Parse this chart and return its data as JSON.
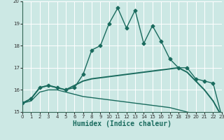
{
  "title": "",
  "xlabel": "Humidex (Indice chaleur)",
  "bg_color": "#cce8e4",
  "grid_color": "#ffffff",
  "line_color": "#1a6b5e",
  "xmin": 0,
  "xmax": 23,
  "ymin": 15,
  "ymax": 20,
  "x_ticks": [
    0,
    1,
    2,
    3,
    4,
    5,
    6,
    7,
    8,
    9,
    10,
    11,
    12,
    13,
    14,
    15,
    16,
    17,
    18,
    19,
    20,
    21,
    22,
    23
  ],
  "y_ticks": [
    15,
    16,
    17,
    18,
    19,
    20
  ],
  "curve1_x": [
    0,
    1,
    2,
    3,
    4,
    5,
    6,
    7,
    8,
    9,
    10,
    11,
    12,
    13,
    14,
    15,
    16,
    17,
    18,
    19,
    20,
    21,
    22,
    23
  ],
  "curve1_y": [
    15.4,
    15.6,
    16.1,
    16.2,
    16.1,
    16.0,
    16.1,
    16.7,
    17.8,
    18.0,
    19.0,
    19.7,
    18.8,
    19.6,
    18.1,
    18.9,
    18.2,
    17.4,
    17.0,
    17.0,
    16.5,
    16.4,
    16.3,
    14.8
  ],
  "curve2_x": [
    0,
    1,
    2,
    3,
    4,
    5,
    6,
    7,
    8,
    9,
    10,
    11,
    12,
    13,
    14,
    15,
    16,
    17,
    18,
    19,
    20,
    21,
    22,
    23
  ],
  "curve2_y": [
    15.4,
    15.6,
    16.1,
    16.2,
    16.1,
    16.0,
    16.2,
    16.4,
    16.5,
    16.55,
    16.6,
    16.65,
    16.7,
    16.75,
    16.8,
    16.85,
    16.9,
    16.95,
    17.0,
    16.8,
    16.4,
    16.0,
    15.5,
    14.8
  ],
  "curve3_x": [
    0,
    1,
    2,
    3,
    4,
    5,
    6,
    7,
    8,
    9,
    10,
    11,
    12,
    13,
    14,
    15,
    16,
    17,
    18,
    19,
    20,
    21,
    22,
    23
  ],
  "curve3_y": [
    15.4,
    15.5,
    15.9,
    16.0,
    16.0,
    15.9,
    15.8,
    15.7,
    15.65,
    15.6,
    15.55,
    15.5,
    15.45,
    15.4,
    15.35,
    15.3,
    15.25,
    15.2,
    15.1,
    15.0,
    14.9,
    14.9,
    14.9,
    14.8
  ]
}
